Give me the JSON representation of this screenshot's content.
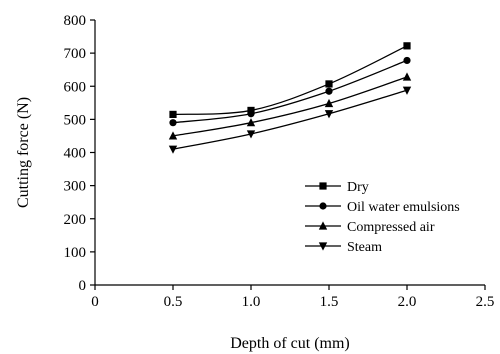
{
  "chart_data": {
    "type": "line",
    "xlabel": "Depth of cut (mm)",
    "ylabel": "Cutting force (N)",
    "xlim": [
      0,
      2.5
    ],
    "ylim": [
      0,
      800
    ],
    "xticks": [
      0,
      0.5,
      1.0,
      1.5,
      2.0,
      2.5
    ],
    "xtick_labels": [
      "0",
      "0.5",
      "1.0",
      "1.5",
      "2.0",
      "2.5"
    ],
    "yticks": [
      0,
      100,
      200,
      300,
      400,
      500,
      600,
      700,
      800
    ],
    "ytick_labels": [
      "0",
      "100",
      "200",
      "300",
      "400",
      "500",
      "600",
      "700",
      "800"
    ],
    "grid": false,
    "legend_position": "right",
    "x": [
      0.5,
      1.0,
      1.5,
      2.0
    ],
    "series": [
      {
        "name": "Dry",
        "marker": "square",
        "values": [
          515,
          527,
          607,
          722
        ]
      },
      {
        "name": "Oil water emulsions",
        "marker": "circle",
        "values": [
          490,
          517,
          585,
          678
        ]
      },
      {
        "name": "Compressed air",
        "marker": "triangle-up",
        "values": [
          450,
          490,
          548,
          628
        ]
      },
      {
        "name": "Steam",
        "marker": "triangle-down",
        "values": [
          410,
          456,
          517,
          588
        ]
      }
    ]
  }
}
